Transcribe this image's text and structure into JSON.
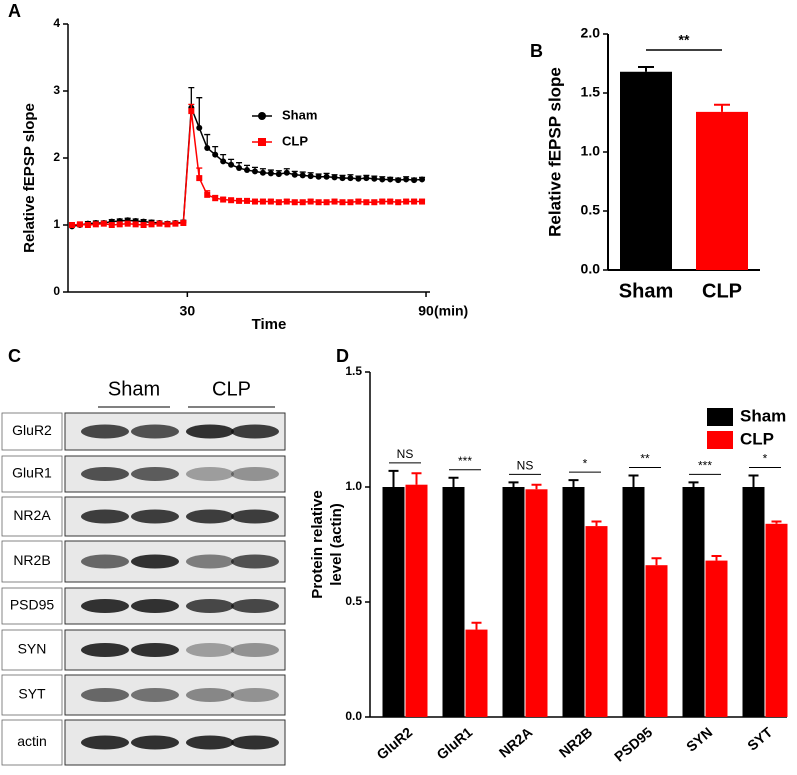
{
  "chart_data": [
    {
      "type": "line",
      "panel": "A",
      "ylabel": "Relative fEPSP slope",
      "xlabel": "Time",
      "xunit": "(min)",
      "xlim": [
        0,
        91
      ],
      "xticks": [
        30,
        90
      ],
      "ylim": [
        0,
        4
      ],
      "yticks": [
        0,
        1,
        2,
        3,
        4
      ],
      "x": [
        1,
        3,
        5,
        7,
        9,
        11,
        13,
        15,
        17,
        19,
        21,
        23,
        25,
        27,
        29,
        31,
        33,
        35,
        37,
        39,
        41,
        43,
        45,
        47,
        49,
        51,
        53,
        55,
        57,
        59,
        61,
        63,
        65,
        67,
        69,
        71,
        73,
        75,
        77,
        79,
        81,
        83,
        85,
        87,
        89
      ],
      "series": [
        {
          "name": "Sham",
          "color": "#000000",
          "marker": "circle",
          "values": [
            0.98,
            1.0,
            1.02,
            1.03,
            1.03,
            1.05,
            1.06,
            1.07,
            1.06,
            1.05,
            1.04,
            1.03,
            1.02,
            1.03,
            1.04,
            2.75,
            2.45,
            2.15,
            2.05,
            1.95,
            1.9,
            1.85,
            1.82,
            1.8,
            1.78,
            1.77,
            1.76,
            1.78,
            1.75,
            1.74,
            1.73,
            1.72,
            1.72,
            1.71,
            1.7,
            1.7,
            1.69,
            1.7,
            1.69,
            1.68,
            1.68,
            1.67,
            1.68,
            1.67,
            1.68
          ],
          "errors": [
            0.03,
            0.03,
            0.03,
            0.03,
            0.03,
            0.03,
            0.03,
            0.03,
            0.03,
            0.03,
            0.03,
            0.03,
            0.03,
            0.03,
            0.03,
            0.3,
            0.45,
            0.2,
            0.12,
            0.1,
            0.08,
            0.08,
            0.07,
            0.06,
            0.06,
            0.05,
            0.05,
            0.06,
            0.05,
            0.05,
            0.05,
            0.04,
            0.05,
            0.04,
            0.04,
            0.05,
            0.04,
            0.04,
            0.04,
            0.04,
            0.03,
            0.03,
            0.04,
            0.03,
            0.03
          ]
        },
        {
          "name": "CLP",
          "color": "#ff0000",
          "marker": "square",
          "values": [
            1.0,
            1.01,
            1.0,
            1.01,
            1.02,
            1.0,
            1.01,
            1.02,
            1.01,
            1.0,
            1.01,
            1.02,
            1.01,
            1.02,
            1.03,
            2.7,
            1.7,
            1.45,
            1.4,
            1.38,
            1.37,
            1.36,
            1.36,
            1.35,
            1.35,
            1.35,
            1.34,
            1.35,
            1.34,
            1.34,
            1.35,
            1.34,
            1.34,
            1.35,
            1.34,
            1.34,
            1.35,
            1.34,
            1.34,
            1.35,
            1.35,
            1.34,
            1.35,
            1.35,
            1.35
          ],
          "errors": [
            0.02,
            0.02,
            0.02,
            0.02,
            0.02,
            0.02,
            0.02,
            0.02,
            0.02,
            0.02,
            0.02,
            0.02,
            0.02,
            0.02,
            0.02,
            0.1,
            0.15,
            0.06,
            0.04,
            0.03,
            0.03,
            0.03,
            0.03,
            0.03,
            0.03,
            0.03,
            0.03,
            0.03,
            0.03,
            0.03,
            0.03,
            0.03,
            0.03,
            0.03,
            0.03,
            0.03,
            0.03,
            0.03,
            0.03,
            0.03,
            0.03,
            0.03,
            0.03,
            0.03,
            0.03
          ]
        }
      ]
    },
    {
      "type": "bar",
      "panel": "B",
      "ylabel": "Relative fEPSP slope",
      "categories": [
        "Sham",
        "CLP"
      ],
      "values": [
        1.68,
        1.34
      ],
      "errors": [
        0.04,
        0.06
      ],
      "colors": [
        "#000000",
        "#ff0000"
      ],
      "significance": "**",
      "ylim": [
        0,
        2
      ],
      "yticks": [
        {
          "value": 0,
          "label": "0.0"
        },
        0.5,
        {
          "value": 1,
          "label": "1.0"
        },
        1.5,
        {
          "value": 2,
          "label": "2.0"
        }
      ]
    },
    {
      "type": "blot",
      "panel": "C",
      "groups": [
        "Sham",
        "CLP"
      ],
      "rows": [
        "GluR2",
        "GluR1",
        "NR2A",
        "NR2B",
        "PSD95",
        "SYN",
        "SYT",
        "actin"
      ]
    },
    {
      "type": "grouped_bar",
      "panel": "D",
      "ylabel": [
        "Protein relative",
        "level (actin)"
      ],
      "categories": [
        "GluR2",
        "GluR1",
        "NR2A",
        "NR2B",
        "PSD95",
        "SYN",
        "SYT"
      ],
      "series": [
        {
          "name": "Sham",
          "color": "#000000",
          "values": [
            1.0,
            1.0,
            1.0,
            1.0,
            1.0,
            1.0,
            1.0
          ],
          "errors": [
            0.07,
            0.04,
            0.02,
            0.03,
            0.05,
            0.02,
            0.05
          ]
        },
        {
          "name": "CLP",
          "color": "#ff0000",
          "values": [
            1.01,
            0.38,
            0.99,
            0.83,
            0.66,
            0.68,
            0.84
          ],
          "errors": [
            0.05,
            0.03,
            0.02,
            0.02,
            0.03,
            0.02,
            0.01
          ]
        }
      ],
      "significance": [
        "NS",
        "***",
        "NS",
        "*",
        "**",
        "***",
        "*"
      ],
      "ylim": [
        0,
        1.5
      ],
      "yticks": [
        {
          "value": 0,
          "label": "0.0"
        },
        0.5,
        {
          "value": 1,
          "label": "1.0"
        },
        1.5
      ]
    }
  ]
}
